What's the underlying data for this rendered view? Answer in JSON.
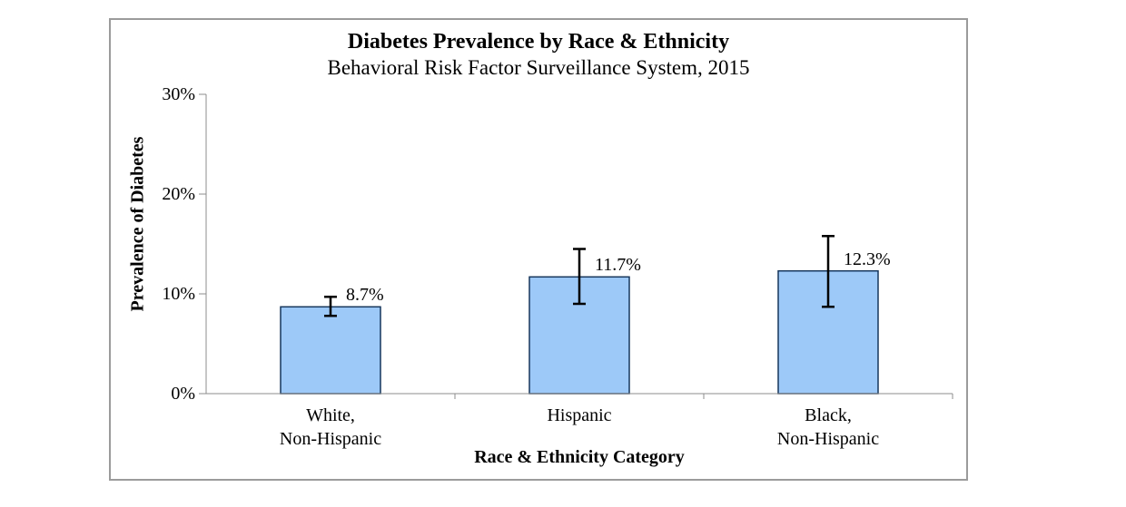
{
  "chart_data": {
    "type": "bar",
    "title": "Diabetes Prevalence by Race & Ethnicity",
    "subtitle": "Behavioral Risk Factor Surveillance System, 2015",
    "xlabel": "Race & Ethnicity Category",
    "ylabel": "Prevalence of Diabetes",
    "categories": [
      [
        "White,",
        "Non-Hispanic"
      ],
      [
        "Hispanic"
      ],
      [
        "Black,",
        "Non-Hispanic"
      ]
    ],
    "values": [
      8.7,
      11.7,
      12.3
    ],
    "data_labels": [
      "8.7%",
      "11.7%",
      "12.3%"
    ],
    "error_bars": [
      {
        "low": 7.8,
        "high": 9.7
      },
      {
        "low": 9.0,
        "high": 14.5
      },
      {
        "low": 8.7,
        "high": 15.8
      }
    ],
    "ylim": [
      0,
      30
    ],
    "yticks": [
      0,
      10,
      20,
      30
    ],
    "ytick_labels": [
      "0%",
      "10%",
      "20%",
      "30%"
    ],
    "grid": false,
    "legend": null,
    "colors": {
      "bar_fill": "#9DC9F8",
      "bar_border": "#16365C",
      "error_bar": "#000000",
      "axis": "#8C8C8C",
      "text": "#000000",
      "frame_border": "#9B9B9B"
    }
  }
}
